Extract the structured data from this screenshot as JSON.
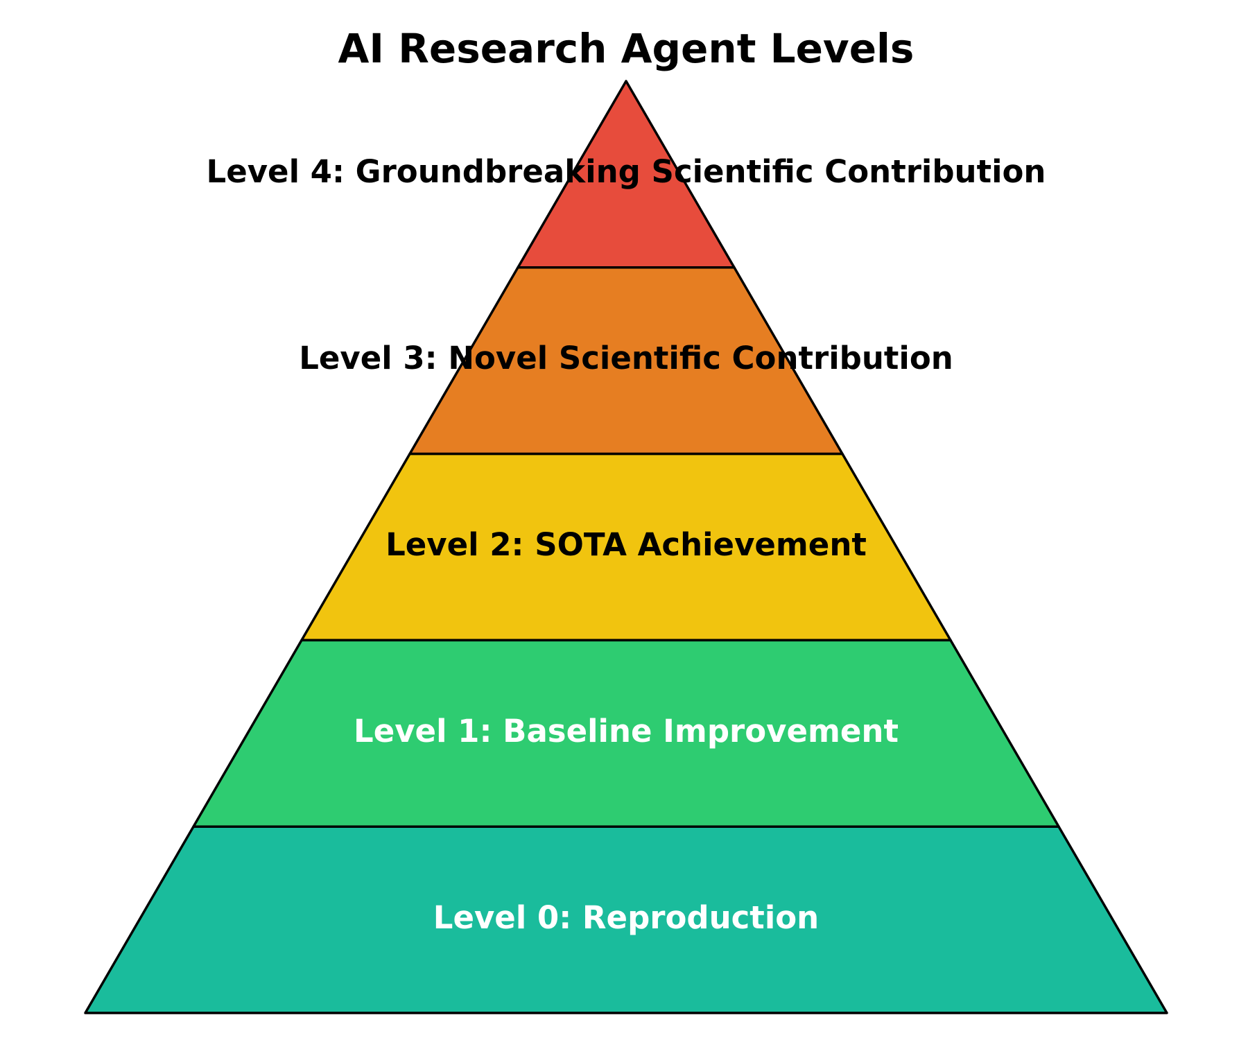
{
  "title": "AI Research Agent Levels",
  "levels": [
    {
      "label": "Level 4: Groundbreaking Scientific Contribution",
      "color": "#e74c3c",
      "text_color": "#000000"
    },
    {
      "label": "Level 3: Novel Scientific Contribution",
      "color": "#e67e22",
      "text_color": "#000000"
    },
    {
      "label": "Level 2: SOTA Achievement",
      "color": "#f1c40f",
      "text_color": "#000000"
    },
    {
      "label": "Level 1: Baseline Improvement",
      "color": "#2ecc71",
      "text_color": "#ffffff"
    },
    {
      "label": "Level 0: Reproduction",
      "color": "#1abc9c",
      "text_color": "#ffffff"
    }
  ]
}
